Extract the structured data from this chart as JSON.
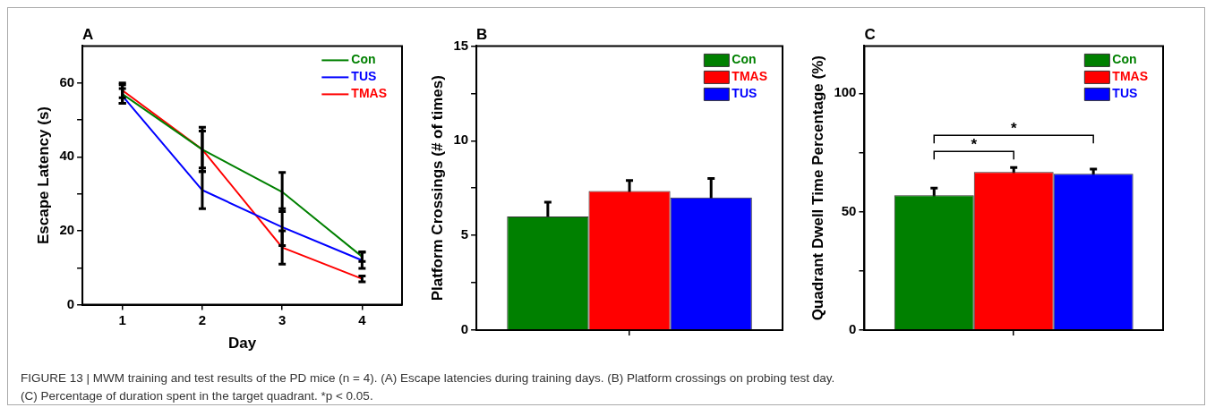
{
  "chart_data": [
    {
      "type": "line",
      "title": "A",
      "xlabel": "Day",
      "ylabel": "Escape Latency (s)",
      "x": [
        1,
        2,
        3,
        4
      ],
      "xlim": [
        0.5,
        4.5
      ],
      "xticks": [
        1,
        2,
        3,
        4
      ],
      "ylim": [
        0,
        70
      ],
      "yticks": [
        0,
        {
          "value": 10,
          "label": null
        },
        20,
        {
          "value": 30,
          "label": null
        },
        40,
        {
          "value": 50,
          "label": null
        },
        60
      ],
      "grid": false,
      "legend": "top right",
      "marker": "none",
      "series": [
        {
          "name": "Con",
          "color": "#008000",
          "values": [
            57,
            42,
            30.5,
            13
          ],
          "errors": [
            2.5,
            6,
            5.3,
            1.3
          ]
        },
        {
          "name": "TUS",
          "color": "#0000ff",
          "values": [
            56.5,
            31,
            21,
            12
          ],
          "errors": [
            2,
            5,
            5,
            2.2
          ]
        },
        {
          "name": "TMAS",
          "color": "#ff0000",
          "values": [
            58,
            42,
            15.5,
            7
          ],
          "errors": [
            2,
            5,
            4.5,
            0.8
          ]
        }
      ]
    },
    {
      "type": "bar",
      "title": "B",
      "ylabel": "Platform Crossings (# of times)",
      "categories": [
        null
      ],
      "ylim": [
        0,
        15
      ],
      "yticks": [
        0,
        {
          "value": 2.5,
          "label": null
        },
        5,
        {
          "value": 7.5,
          "label": null
        },
        10,
        {
          "value": 12.5,
          "label": null
        },
        15
      ],
      "grid": false,
      "legend": "top right",
      "series": [
        {
          "name": "Con",
          "color": "#008000",
          "values": [
            6
          ],
          "errors": [
            0.75
          ]
        },
        {
          "name": "TMAS",
          "color": "#ff0000",
          "values": [
            7.35
          ],
          "errors": [
            0.55
          ]
        },
        {
          "name": "TUS",
          "color": "#0000ff",
          "values": [
            7
          ],
          "errors": [
            1
          ]
        }
      ]
    },
    {
      "type": "bar",
      "title": "C",
      "ylabel": "Quadrant Dwell Time Percentage (%)",
      "categories": [
        null
      ],
      "ylim": [
        0,
        120
      ],
      "yticks": [
        0,
        {
          "value": 25,
          "label": null
        },
        50,
        {
          "value": 75,
          "label": null
        },
        100
      ],
      "grid": false,
      "legend": "top right",
      "annotations": [
        "*",
        "*"
      ],
      "series": [
        {
          "name": "Con",
          "color": "#008000",
          "values": [
            57
          ],
          "errors": [
            3
          ]
        },
        {
          "name": "TMAS",
          "color": "#ff0000",
          "values": [
            66.8
          ],
          "errors": [
            1.9
          ]
        },
        {
          "name": "TUS",
          "color": "#0000ff",
          "values": [
            66
          ],
          "errors": [
            2
          ]
        }
      ]
    },
    {
      "type": "other",
      "annotations": [
        "FIGURE 13 | MWM training and test results of the PD mice (n = 4). (A) Escape latencies during training days. (B) Platform crossings on probing test day.",
        "(C) Percentage of duration spent in the target quadrant. *p < 0.05."
      ]
    }
  ]
}
